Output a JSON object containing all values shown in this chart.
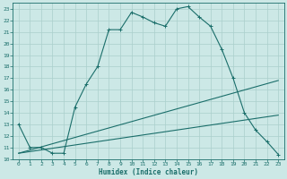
{
  "xlabel": "Humidex (Indice chaleur)",
  "bg_color": "#cce8e6",
  "grid_color": "#aacfcc",
  "line_color": "#1a6e6a",
  "xlim": [
    -0.5,
    23.5
  ],
  "ylim": [
    10,
    23.5
  ],
  "xticks": [
    0,
    1,
    2,
    3,
    4,
    5,
    6,
    7,
    8,
    9,
    10,
    11,
    12,
    13,
    14,
    15,
    16,
    17,
    18,
    19,
    20,
    21,
    22,
    23
  ],
  "yticks": [
    10,
    11,
    12,
    13,
    14,
    15,
    16,
    17,
    18,
    19,
    20,
    21,
    22,
    23
  ],
  "curve1_x": [
    0,
    1,
    2,
    3,
    4,
    5,
    6,
    7,
    8,
    9,
    10,
    11,
    12,
    13,
    14,
    15,
    16,
    17,
    18,
    19,
    20,
    21,
    22,
    23
  ],
  "curve1_y": [
    13.0,
    11.0,
    11.0,
    10.5,
    10.5,
    14.5,
    16.5,
    18.0,
    21.2,
    21.2,
    22.7,
    22.3,
    21.8,
    21.5,
    23.0,
    23.2,
    22.3,
    21.5,
    19.5,
    17.0,
    14.0,
    12.5,
    11.5,
    10.4
  ],
  "curve2_x": [
    0,
    23
  ],
  "curve2_y": [
    10.5,
    16.8
  ],
  "curve3_x": [
    0,
    23
  ],
  "curve3_y": [
    10.5,
    13.8
  ]
}
